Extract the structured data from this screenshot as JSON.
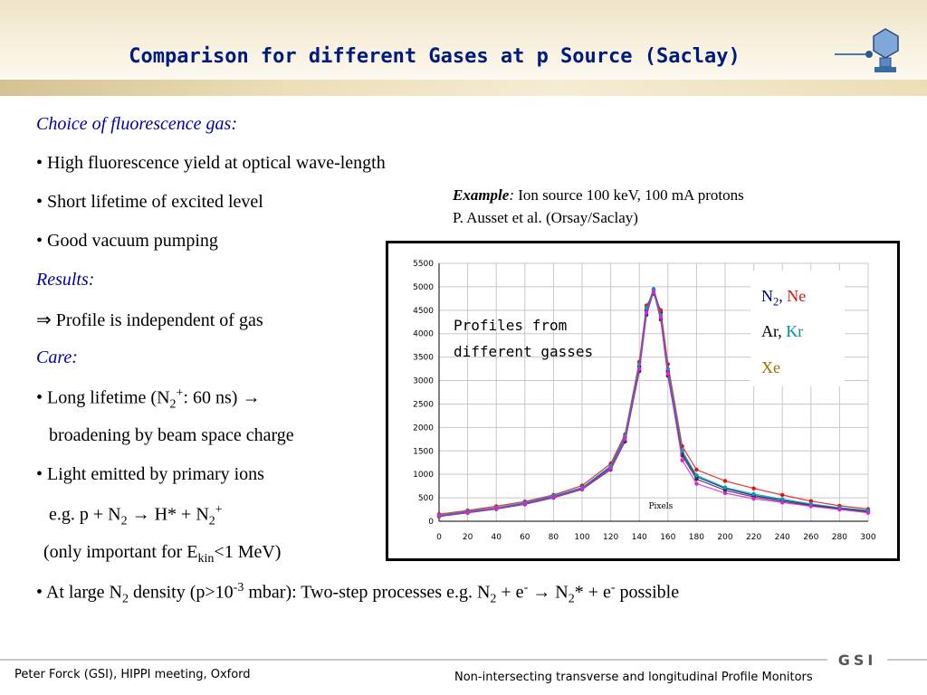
{
  "header": {
    "title": "Comparison for different Gases at p Source (Saclay)"
  },
  "body": {
    "choice_heading": "Choice of fluorescence gas:",
    "b1": "• High fluorescence yield at optical wave-length",
    "b2": "• Short lifetime of excited level",
    "b3": "• Good vacuum pumping",
    "results_heading": "Results:",
    "arrow": "⇒",
    "result_text": " Profile is independent of gas",
    "care_heading": "Care:",
    "c1_pre": "• Long lifetime (N",
    "c1_sub": "2",
    "c1_sup": "+",
    "c1_post": ": 60 ns) →",
    "c1_line2": "broadening by  beam space charge",
    "c2": "• Light emitted by primary ions",
    "c3_pre": "e.g. p + N",
    "c3_sub": "2",
    "c3_mid": " → H* + N",
    "c3_sub2": "2",
    "c3_sup": "+",
    "c4_pre": "(only important for E",
    "c4_sub": "kin",
    "c4_post": "<1 MeV)",
    "c5_pre": "• At large N",
    "c5_sub": "2",
    "c5_mid": " density (p>10",
    "c5_sup": "-3",
    "c5_mid2": " mbar): Two-step processes  e.g. N",
    "c5_sub2": "2",
    "c5_mid3": " + e",
    "c5_sup2": "-",
    "c5_mid4": " → N",
    "c5_sub3": "2",
    "c5_mid5": "* + e",
    "c5_sup3": "-",
    "c5_end": "  possible"
  },
  "example": {
    "label": "Example",
    "colon": ":",
    "line1": " Ion source 100 keV, 100 mA protons",
    "line2": "P. Ausset et al. (Orsay/Saclay)"
  },
  "chart_data": {
    "type": "scatter",
    "xlabel": "Pixels",
    "ylim": [
      0,
      5500
    ],
    "xlim": [
      0,
      300
    ],
    "yticks": [
      0,
      500,
      1000,
      1500,
      2000,
      2500,
      3000,
      3500,
      4000,
      4500,
      5000,
      5500
    ],
    "xticks": [
      0,
      20,
      40,
      60,
      80,
      100,
      120,
      140,
      160,
      180,
      200,
      220,
      240,
      260,
      280,
      300
    ],
    "grid": true,
    "annotation_line1": "Profiles from",
    "annotation_line2": "different gasses",
    "legend": {
      "n2_base": "N",
      "n2_sub": "2",
      "n2_sep": ",",
      "ne": " Ne",
      "ar": "Ar,",
      "kr": " Kr",
      "xe": "Xe"
    },
    "series": [
      {
        "key": "N2",
        "color": "#000080",
        "x": [
          0,
          20,
          40,
          60,
          80,
          100,
          120,
          130,
          140,
          145,
          150,
          155,
          160,
          170,
          180,
          200,
          220,
          240,
          260,
          280,
          300
        ],
        "y": [
          120,
          200,
          280,
          380,
          520,
          700,
          1150,
          1800,
          3300,
          4500,
          4950,
          4450,
          3200,
          1450,
          950,
          700,
          550,
          450,
          350,
          280,
          220
        ]
      },
      {
        "key": "Ne",
        "color": "#e01010",
        "x": [
          0,
          20,
          40,
          60,
          80,
          100,
          120,
          130,
          140,
          145,
          150,
          155,
          160,
          170,
          180,
          200,
          220,
          240,
          260,
          280,
          300
        ],
        "y": [
          150,
          230,
          320,
          420,
          560,
          760,
          1230,
          1850,
          3400,
          4600,
          4850,
          4500,
          3350,
          1600,
          1100,
          860,
          700,
          560,
          430,
          330,
          260
        ]
      },
      {
        "key": "Ar",
        "color": "#303030",
        "x": [
          0,
          20,
          40,
          60,
          80,
          100,
          120,
          130,
          140,
          145,
          150,
          155,
          160,
          170,
          180,
          200,
          220,
          240,
          260,
          280,
          300
        ],
        "y": [
          100,
          180,
          260,
          360,
          500,
          680,
          1100,
          1700,
          3200,
          4400,
          4900,
          4300,
          3100,
          1400,
          900,
          660,
          520,
          420,
          330,
          260,
          200
        ]
      },
      {
        "key": "Kr",
        "color": "#00a0b0",
        "x": [
          0,
          20,
          40,
          60,
          80,
          100,
          120,
          130,
          140,
          145,
          150,
          155,
          160,
          170,
          180,
          200,
          220,
          240,
          260,
          280,
          300
        ],
        "y": [
          130,
          210,
          290,
          400,
          540,
          720,
          1180,
          1820,
          3350,
          4550,
          4950,
          4400,
          3250,
          1500,
          980,
          720,
          580,
          470,
          370,
          290,
          230
        ]
      },
      {
        "key": "Xe",
        "color": "#e020e0",
        "x": [
          0,
          20,
          40,
          60,
          80,
          100,
          120,
          130,
          140,
          145,
          150,
          155,
          160,
          170,
          180,
          200,
          220,
          240,
          260,
          280,
          300
        ],
        "y": [
          110,
          190,
          270,
          370,
          510,
          690,
          1120,
          1750,
          3250,
          4450,
          4900,
          4350,
          3150,
          1300,
          800,
          600,
          480,
          400,
          320,
          250,
          180
        ]
      }
    ]
  },
  "footer": {
    "left": "Peter Forck (GSI), HIPPI meeting, Oxford",
    "right": "Non-intersecting transverse and longitudinal  Profile Monitors",
    "logo_text": "GSI"
  },
  "colors": {
    "title": "#001a80",
    "heading": "#0000a0"
  },
  "icons": {
    "top_logo": "fluorescence-monitor-logo-icon",
    "footer_logo": "gsi-logo-icon"
  }
}
